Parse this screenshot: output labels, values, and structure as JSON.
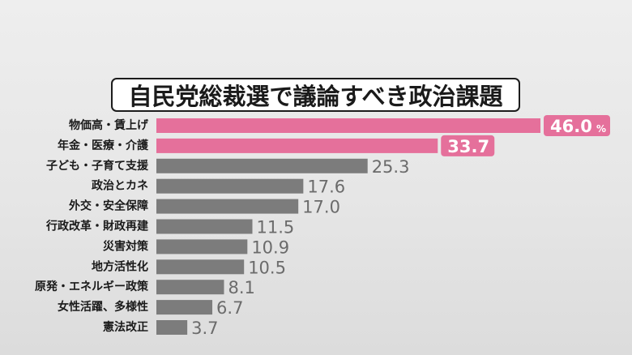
{
  "chart_data": {
    "type": "bar",
    "orientation": "horizontal",
    "title": "自民党総裁選で議論すべき政治課題",
    "categories": [
      "物価高・賃上げ",
      "年金・医療・介護",
      "子ども・子育て支援",
      "政治とカネ",
      "外交・安全保障",
      "行政改革・財政再建",
      "災害対策",
      "地方活性化",
      "原発・エネルギー政策",
      "女性活躍、多様性",
      "憲法改正"
    ],
    "values": [
      46.0,
      33.7,
      25.3,
      17.6,
      17.0,
      11.5,
      10.9,
      10.5,
      8.1,
      6.7,
      3.7
    ],
    "value_labels": [
      "46.0",
      "33.7",
      "25.3",
      "17.6",
      "17.0",
      "11.5",
      "10.9",
      "10.5",
      "8.1",
      "6.7",
      "3.7"
    ],
    "unit": "%",
    "highlighted": [
      0,
      1
    ],
    "xlim": [
      0,
      46.0
    ],
    "grid": false,
    "colors": {
      "highlight": "#e5709b",
      "bar": "#7c7c7c",
      "label_text": "#1a1a1a",
      "value_text": "#6b6b6b",
      "badge_text": "#ffffff"
    }
  }
}
